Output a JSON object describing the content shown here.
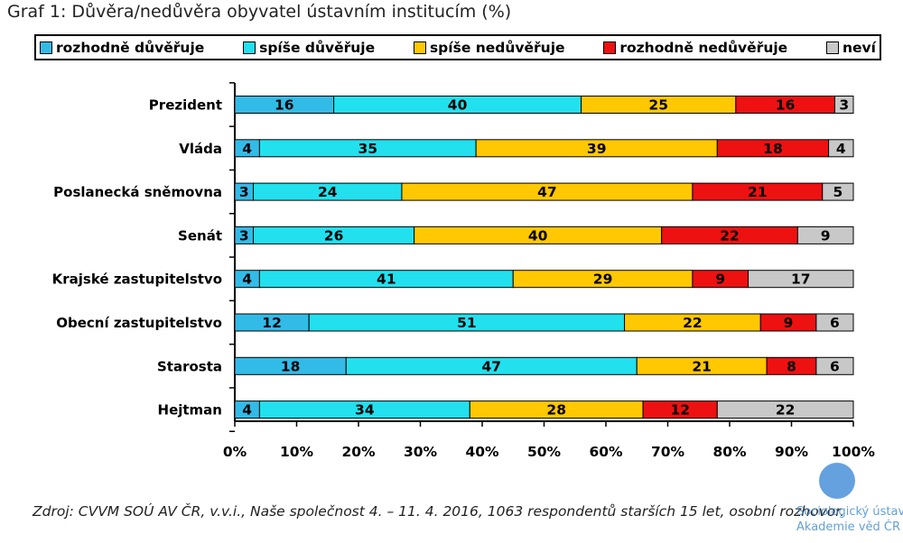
{
  "chart_data": {
    "type": "bar",
    "orientation": "horizontal",
    "stacked": true,
    "title": "Graf 1: Důvěra/nedůvěra obyvatel ústavním institucím (%)",
    "categories": [
      "Prezident",
      "Vláda",
      "Poslanecká sněmovna",
      "Senát",
      "Krajské zastupitelstvo",
      "Obecní zastupitelstvo",
      "Starosta",
      "Hejtman"
    ],
    "series": [
      {
        "name": "rozhodně důvěřuje",
        "color": "#33bbe8",
        "values": [
          16,
          4,
          3,
          3,
          4,
          12,
          18,
          4
        ]
      },
      {
        "name": "spíše důvěřuje",
        "color": "#22e0ee",
        "values": [
          40,
          35,
          24,
          26,
          41,
          51,
          47,
          34
        ]
      },
      {
        "name": "spíše nedůvěřuje",
        "color": "#ffc800",
        "values": [
          25,
          39,
          47,
          40,
          29,
          22,
          21,
          28
        ]
      },
      {
        "name": "rozhodně nedůvěřuje",
        "color": "#ee1111",
        "values": [
          16,
          18,
          21,
          22,
          9,
          9,
          8,
          12
        ]
      },
      {
        "name": "neví",
        "color": "#c8c8c8",
        "values": [
          3,
          4,
          5,
          9,
          17,
          6,
          6,
          22
        ]
      }
    ],
    "xticks": [
      "0%",
      "10%",
      "20%",
      "30%",
      "40%",
      "50%",
      "60%",
      "70%",
      "80%",
      "90%",
      "100%"
    ],
    "xlim": [
      0,
      100
    ],
    "legend_position": "top",
    "grid": false
  },
  "source": "Zdroj: CVVM SOÚ AV ČR, v.v.i., Naše společnost 4. – 11. 4. 2016, 1063 respondentů starších 15 let, osobní rozhovor.",
  "logo": {
    "line1": "Sociologický ústav",
    "line2": "Akademie věd ČR"
  }
}
